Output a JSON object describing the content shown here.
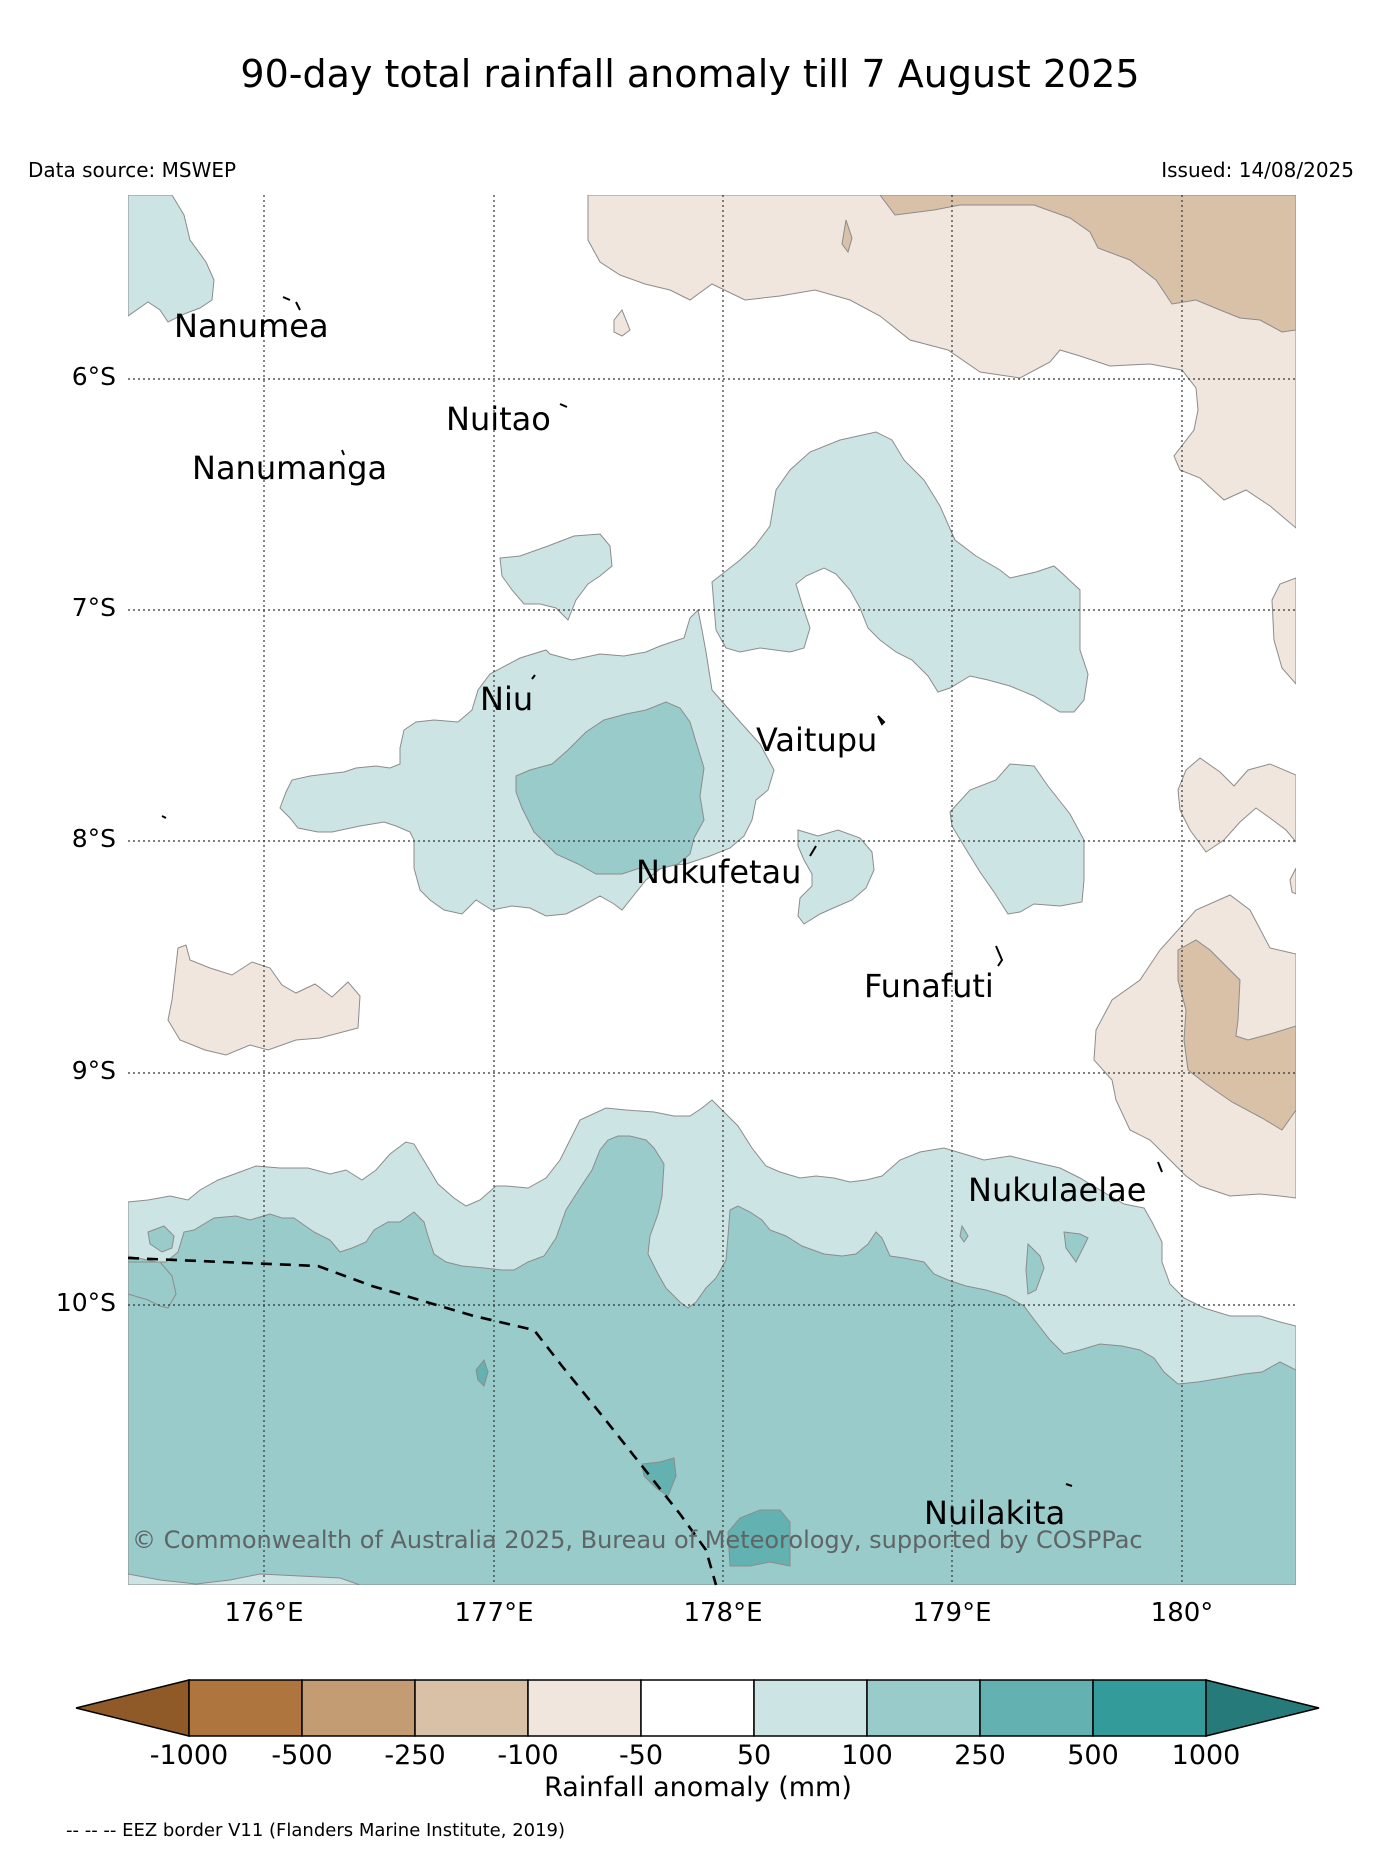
{
  "title": "90-day total rainfall anomaly till 7 August 2025",
  "data_source": "Data source: MSWEP",
  "issued": "Issued: 14/08/2025",
  "latitude_labels": [
    "6°S",
    "7°S",
    "8°S",
    "9°S",
    "10°S"
  ],
  "longitude_labels": [
    "176°E",
    "177°E",
    "178°E",
    "179°E",
    "180°"
  ],
  "islands": [
    {
      "name": "Nanumea"
    },
    {
      "name": "Nuitao"
    },
    {
      "name": "Nanumanga"
    },
    {
      "name": "Niu"
    },
    {
      "name": "Vaitupu"
    },
    {
      "name": "Nukufetau"
    },
    {
      "name": "Funafuti"
    },
    {
      "name": "Nukulaelae"
    },
    {
      "name": "Nuilakita"
    }
  ],
  "copyright": "© Commonwealth of Australia 2025, Bureau of Meteorology, supported by COSPPac",
  "colorbar": {
    "title": "Rainfall anomaly (mm)",
    "ticks": [
      "-1000",
      "-500",
      "-250",
      "-100",
      "-50",
      "50",
      "100",
      "250",
      "500",
      "1000"
    ],
    "colors": [
      "#8f5a28",
      "#ae753e",
      "#c49c74",
      "#d9c1a8",
      "#f0e6dd",
      "#ffffff",
      "#cce5e4",
      "#99cbcb",
      "#64b1b1",
      "#339b99",
      "#267a79"
    ]
  },
  "legend_note": "-- -- -- EEZ border V11 (Flanders Marine Institute, 2019)"
}
